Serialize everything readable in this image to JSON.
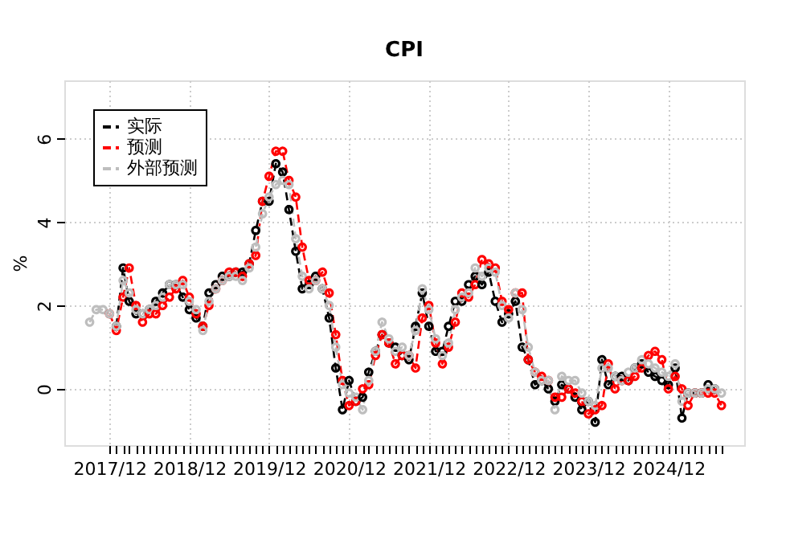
{
  "chart_data": {
    "type": "line",
    "title": "CPI",
    "ylabel": "%",
    "xlim": [
      "2017-05-08",
      "2025-11-13"
    ],
    "ylim": [
      -1.35,
      7.4
    ],
    "yticks": [
      0,
      2,
      4,
      6
    ],
    "xticks": [
      {
        "value": "2017-12",
        "label": "2017/12"
      },
      {
        "value": "2018-01",
        "label": null
      },
      {
        "value": "2018-02",
        "label": null
      },
      {
        "value": "2018-03",
        "label": null
      },
      {
        "value": "2018-04",
        "label": null
      },
      {
        "value": "2018-05",
        "label": null
      },
      {
        "value": "2018-06",
        "label": null
      },
      {
        "value": "2018-07",
        "label": null
      },
      {
        "value": "2018-08",
        "label": null
      },
      {
        "value": "2018-09",
        "label": null
      },
      {
        "value": "2018-10",
        "label": null
      },
      {
        "value": "2018-11",
        "label": null
      },
      {
        "value": "2018-12",
        "label": "2018/12"
      },
      {
        "value": "2019-01",
        "label": null
      },
      {
        "value": "2019-02",
        "label": null
      },
      {
        "value": "2019-03",
        "label": null
      },
      {
        "value": "2019-04",
        "label": null
      },
      {
        "value": "2019-05",
        "label": null
      },
      {
        "value": "2019-06",
        "label": null
      },
      {
        "value": "2019-07",
        "label": null
      },
      {
        "value": "2019-08",
        "label": null
      },
      {
        "value": "2019-09",
        "label": null
      },
      {
        "value": "2019-10",
        "label": null
      },
      {
        "value": "2019-11",
        "label": null
      },
      {
        "value": "2019-12",
        "label": "2019/12"
      },
      {
        "value": "2020-01",
        "label": null
      },
      {
        "value": "2020-02",
        "label": null
      },
      {
        "value": "2020-03",
        "label": null
      },
      {
        "value": "2020-04",
        "label": null
      },
      {
        "value": "2020-05",
        "label": null
      },
      {
        "value": "2020-06",
        "label": null
      },
      {
        "value": "2020-07",
        "label": null
      },
      {
        "value": "2020-08",
        "label": null
      },
      {
        "value": "2020-09",
        "label": null
      },
      {
        "value": "2020-10",
        "label": null
      },
      {
        "value": "2020-11",
        "label": null
      },
      {
        "value": "2020-12",
        "label": "2020/12"
      },
      {
        "value": "2021-01",
        "label": null
      },
      {
        "value": "2021-02",
        "label": null
      },
      {
        "value": "2021-03",
        "label": null
      },
      {
        "value": "2021-04",
        "label": null
      },
      {
        "value": "2021-05",
        "label": null
      },
      {
        "value": "2021-06",
        "label": null
      },
      {
        "value": "2021-07",
        "label": null
      },
      {
        "value": "2021-08",
        "label": null
      },
      {
        "value": "2021-09",
        "label": null
      },
      {
        "value": "2021-10",
        "label": null
      },
      {
        "value": "2021-11",
        "label": null
      },
      {
        "value": "2021-12",
        "label": "2021/12"
      },
      {
        "value": "2022-01",
        "label": null
      },
      {
        "value": "2022-02",
        "label": null
      },
      {
        "value": "2022-03",
        "label": null
      },
      {
        "value": "2022-04",
        "label": null
      },
      {
        "value": "2022-05",
        "label": null
      },
      {
        "value": "2022-06",
        "label": null
      },
      {
        "value": "2022-07",
        "label": null
      },
      {
        "value": "2022-08",
        "label": null
      },
      {
        "value": "2022-09",
        "label": null
      },
      {
        "value": "2022-10",
        "label": null
      },
      {
        "value": "2022-11",
        "label": null
      },
      {
        "value": "2022-12",
        "label": "2022/12"
      },
      {
        "value": "2023-01",
        "label": null
      },
      {
        "value": "2023-02",
        "label": null
      },
      {
        "value": "2023-03",
        "label": null
      },
      {
        "value": "2023-04",
        "label": null
      },
      {
        "value": "2023-05",
        "label": null
      },
      {
        "value": "2023-06",
        "label": null
      },
      {
        "value": "2023-07",
        "label": null
      },
      {
        "value": "2023-08",
        "label": null
      },
      {
        "value": "2023-09",
        "label": null
      },
      {
        "value": "2023-10",
        "label": null
      },
      {
        "value": "2023-11",
        "label": null
      },
      {
        "value": "2023-12",
        "label": "2023/12"
      },
      {
        "value": "2024-01",
        "label": null
      },
      {
        "value": "2024-02",
        "label": null
      },
      {
        "value": "2024-03",
        "label": null
      },
      {
        "value": "2024-04",
        "label": null
      },
      {
        "value": "2024-05",
        "label": null
      },
      {
        "value": "2024-06",
        "label": null
      },
      {
        "value": "2024-07",
        "label": null
      },
      {
        "value": "2024-08",
        "label": null
      },
      {
        "value": "2024-09",
        "label": null
      },
      {
        "value": "2024-10",
        "label": null
      },
      {
        "value": "2024-11",
        "label": null
      },
      {
        "value": "2024-12",
        "label": "2024/12"
      },
      {
        "value": "2025-01",
        "label": null
      },
      {
        "value": "2025-02",
        "label": null
      },
      {
        "value": "2025-03",
        "label": null
      },
      {
        "value": "2025-04",
        "label": null
      },
      {
        "value": "2025-05",
        "label": null
      },
      {
        "value": "2025-06",
        "label": null
      },
      {
        "value": "2025-07",
        "label": null
      },
      {
        "value": "2025-08",
        "label": null
      }
    ],
    "grid": true,
    "legend": "top left",
    "marker": "circle",
    "line_style": "dashed",
    "series": [
      {
        "name": "实际",
        "color": "#000000",
        "x": [
          "2018-01",
          "2018-02",
          "2018-03",
          "2018-04",
          "2018-05",
          "2018-06",
          "2018-07",
          "2018-08",
          "2018-09",
          "2018-10",
          "2018-11",
          "2018-12",
          "2019-01",
          "2019-02",
          "2019-03",
          "2019-04",
          "2019-05",
          "2019-06",
          "2019-07",
          "2019-08",
          "2019-09",
          "2019-10",
          "2019-11",
          "2019-12",
          "2020-01",
          "2020-02",
          "2020-03",
          "2020-04",
          "2020-05",
          "2020-06",
          "2020-07",
          "2020-08",
          "2020-09",
          "2020-10",
          "2020-11",
          "2020-12",
          "2021-01",
          "2021-02",
          "2021-03",
          "2021-04",
          "2021-05",
          "2021-06",
          "2021-07",
          "2021-08",
          "2021-09",
          "2021-10",
          "2021-11",
          "2021-12",
          "2022-01",
          "2022-02",
          "2022-03",
          "2022-04",
          "2022-05",
          "2022-06",
          "2022-07",
          "2022-08",
          "2022-09",
          "2022-10",
          "2022-11",
          "2022-12",
          "2023-01",
          "2023-02",
          "2023-03",
          "2023-04",
          "2023-05",
          "2023-06",
          "2023-07",
          "2023-08",
          "2023-09",
          "2023-10",
          "2023-11",
          "2023-12",
          "2024-01",
          "2024-02",
          "2024-03",
          "2024-04",
          "2024-05",
          "2024-06",
          "2024-07",
          "2024-08",
          "2024-09",
          "2024-10",
          "2024-11",
          "2024-12",
          "2025-01",
          "2025-02",
          "2025-03",
          "2025-04",
          "2025-05",
          "2025-06",
          "2025-07"
        ],
        "values": [
          1.5,
          2.9,
          2.1,
          1.8,
          1.8,
          1.9,
          2.1,
          2.3,
          2.5,
          2.5,
          2.2,
          1.9,
          1.7,
          1.5,
          2.3,
          2.5,
          2.7,
          2.7,
          2.8,
          2.8,
          3.0,
          3.8,
          4.5,
          4.5,
          5.4,
          5.2,
          4.3,
          3.3,
          2.4,
          2.5,
          2.7,
          2.4,
          1.7,
          0.5,
          -0.5,
          0.2,
          -0.3,
          -0.2,
          0.4,
          0.9,
          1.3,
          1.1,
          1.0,
          0.8,
          0.7,
          1.5,
          2.3,
          1.5,
          0.9,
          0.9,
          1.5,
          2.1,
          2.1,
          2.5,
          2.7,
          2.5,
          2.8,
          2.1,
          1.6,
          1.8,
          2.1,
          1.0,
          0.7,
          0.1,
          0.2,
          0.0,
          -0.3,
          0.1,
          0.0,
          -0.2,
          -0.5,
          -0.3,
          -0.8,
          0.7,
          0.1,
          0.3,
          0.3,
          0.2,
          0.5,
          0.6,
          0.4,
          0.3,
          0.2,
          0.1,
          0.5,
          -0.7,
          -0.1,
          -0.1,
          -0.1,
          0.1,
          0.0
        ]
      },
      {
        "name": "预测",
        "color": "#ff0000",
        "x": [
          "2017-12",
          "2018-01",
          "2018-02",
          "2018-03",
          "2018-04",
          "2018-05",
          "2018-06",
          "2018-07",
          "2018-08",
          "2018-09",
          "2018-10",
          "2018-11",
          "2018-12",
          "2019-01",
          "2019-02",
          "2019-03",
          "2019-04",
          "2019-05",
          "2019-06",
          "2019-07",
          "2019-08",
          "2019-09",
          "2019-10",
          "2019-11",
          "2019-12",
          "2020-01",
          "2020-02",
          "2020-03",
          "2020-04",
          "2020-05",
          "2020-06",
          "2020-07",
          "2020-08",
          "2020-09",
          "2020-10",
          "2020-11",
          "2020-12",
          "2021-01",
          "2021-02",
          "2021-03",
          "2021-04",
          "2021-05",
          "2021-06",
          "2021-07",
          "2021-08",
          "2021-09",
          "2021-10",
          "2021-11",
          "2021-12",
          "2022-01",
          "2022-02",
          "2022-03",
          "2022-04",
          "2022-05",
          "2022-06",
          "2022-07",
          "2022-08",
          "2022-09",
          "2022-10",
          "2022-11",
          "2022-12",
          "2023-01",
          "2023-02",
          "2023-03",
          "2023-04",
          "2023-05",
          "2023-06",
          "2023-07",
          "2023-08",
          "2023-09",
          "2023-10",
          "2023-11",
          "2023-12",
          "2024-01",
          "2024-02",
          "2024-03",
          "2024-04",
          "2024-05",
          "2024-06",
          "2024-07",
          "2024-08",
          "2024-09",
          "2024-10",
          "2024-11",
          "2024-12",
          "2025-01",
          "2025-02",
          "2025-03",
          "2025-04",
          "2025-05",
          "2025-06",
          "2025-07",
          "2025-08"
        ],
        "values": [
          1.8,
          1.4,
          2.2,
          2.9,
          2.0,
          1.6,
          1.8,
          1.8,
          2.0,
          2.2,
          2.4,
          2.6,
          2.2,
          1.8,
          1.5,
          2.0,
          2.4,
          2.6,
          2.8,
          2.8,
          2.7,
          3.0,
          3.2,
          4.5,
          5.1,
          5.7,
          5.7,
          5.0,
          4.6,
          3.4,
          2.6,
          2.6,
          2.8,
          2.3,
          1.3,
          0.2,
          -0.4,
          -0.3,
          0.0,
          0.1,
          0.8,
          1.3,
          1.1,
          0.6,
          0.8,
          0.8,
          0.5,
          1.7,
          2.0,
          1.1,
          0.6,
          1.0,
          1.6,
          2.3,
          2.2,
          2.5,
          3.1,
          3.0,
          2.9,
          2.1,
          1.9,
          2.3,
          2.3,
          0.7,
          0.4,
          0.3,
          0.2,
          -0.2,
          -0.2,
          0.0,
          -0.1,
          -0.3,
          -0.6,
          -0.5,
          -0.4,
          0.6,
          0.0,
          0.2,
          0.2,
          0.3,
          0.5,
          0.8,
          0.9,
          0.7,
          0.0,
          0.3,
          0.0,
          -0.4,
          -0.1,
          -0.1,
          -0.1,
          -0.1,
          -0.4
        ]
      },
      {
        "name": "外部预测",
        "color": "#bebebe",
        "x": [
          "2017-09",
          "2017-10",
          "2017-11",
          "2017-12",
          "2018-01",
          "2018-02",
          "2018-03",
          "2018-04",
          "2018-05",
          "2018-06",
          "2018-07",
          "2018-08",
          "2018-09",
          "2018-10",
          "2018-11",
          "2018-12",
          "2019-01",
          "2019-02",
          "2019-03",
          "2019-04",
          "2019-05",
          "2019-06",
          "2019-07",
          "2019-08",
          "2019-09",
          "2019-10",
          "2019-11",
          "2019-12",
          "2020-01",
          "2020-02",
          "2020-03",
          "2020-04",
          "2020-05",
          "2020-06",
          "2020-07",
          "2020-08",
          "2020-09",
          "2020-10",
          "2020-11",
          "2020-12",
          "2021-01",
          "2021-02",
          "2021-03",
          "2021-04",
          "2021-05",
          "2021-06",
          "2021-07",
          "2021-08",
          "2021-09",
          "2021-10",
          "2021-11",
          "2021-12",
          "2022-01",
          "2022-02",
          "2022-03",
          "2022-04",
          "2022-05",
          "2022-06",
          "2022-07",
          "2022-08",
          "2022-09",
          "2022-10",
          "2022-11",
          "2022-12",
          "2023-01",
          "2023-02",
          "2023-03",
          "2023-04",
          "2023-05",
          "2023-06",
          "2023-07",
          "2023-08",
          "2023-09",
          "2023-10",
          "2023-11",
          "2023-12",
          "2024-01",
          "2024-02",
          "2024-03",
          "2024-04",
          "2024-05",
          "2024-06",
          "2024-07",
          "2024-08",
          "2024-09",
          "2024-10",
          "2024-11",
          "2024-12",
          "2025-01",
          "2025-02",
          "2025-03",
          "2025-04",
          "2025-05",
          "2025-06",
          "2025-07",
          "2025-08"
        ],
        "values": [
          1.6,
          1.9,
          1.9,
          1.8,
          1.5,
          2.6,
          2.3,
          1.9,
          1.8,
          1.9,
          2.0,
          2.2,
          2.5,
          2.5,
          2.5,
          2.1,
          1.9,
          1.4,
          2.1,
          2.4,
          2.6,
          2.7,
          2.7,
          2.6,
          2.9,
          3.4,
          4.2,
          4.6,
          4.9,
          5.0,
          4.9,
          3.6,
          2.7,
          2.4,
          2.6,
          2.4,
          2.0,
          1.0,
          0.1,
          -0.1,
          -0.2,
          -0.5,
          0.2,
          0.9,
          1.6,
          1.2,
          0.9,
          1.0,
          0.8,
          1.4,
          2.4,
          1.9,
          1.2,
          0.8,
          1.1,
          1.9,
          2.2,
          2.3,
          2.9,
          2.7,
          2.9,
          2.8,
          2.0,
          1.7,
          2.3,
          1.9,
          1.0,
          0.4,
          0.2,
          0.2,
          -0.5,
          0.3,
          0.2,
          0.2,
          -0.1,
          -0.3,
          -0.4,
          0.5,
          0.5,
          0.3,
          0.2,
          0.4,
          0.5,
          0.7,
          0.6,
          0.5,
          0.4,
          0.3,
          0.6,
          -0.3,
          -0.1,
          -0.1,
          -0.1,
          0.0,
          0.0,
          -0.1
        ]
      }
    ]
  }
}
